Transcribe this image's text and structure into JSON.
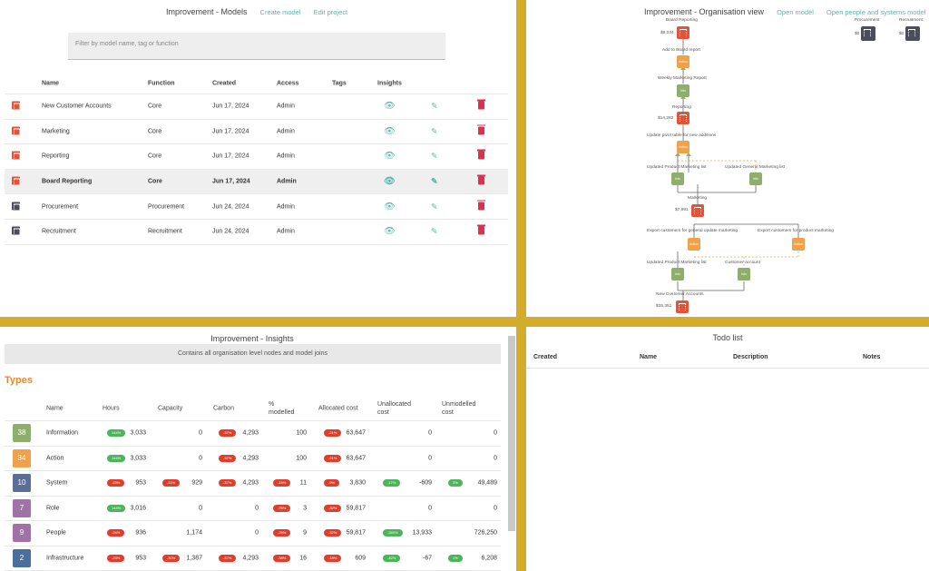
{
  "models": {
    "title": "Improvement - Models",
    "create_label": "Create model",
    "edit_label": "Edit project",
    "filter_placeholder": "Filter by model name, tag or function",
    "columns": [
      "Name",
      "Function",
      "Created",
      "Access",
      "Tags",
      "Insights"
    ],
    "rows": [
      {
        "name": "New Customer Accounts",
        "function": "Core",
        "created": "Jun 17, 2024",
        "access": "Admin",
        "icon": "org-chart-icon",
        "icon_color": "#e0553a"
      },
      {
        "name": "Marketing",
        "function": "Core",
        "created": "Jun 17, 2024",
        "access": "Admin",
        "icon": "org-chart-icon",
        "icon_color": "#e0553a"
      },
      {
        "name": "Reporting",
        "function": "Core",
        "created": "Jun 17, 2024",
        "access": "Admin",
        "icon": "org-chart-icon",
        "icon_color": "#e0553a"
      },
      {
        "name": "Board Reporting",
        "function": "Core",
        "created": "Jun 17, 2024",
        "access": "Admin",
        "icon": "org-chart-icon",
        "icon_color": "#e0553a"
      },
      {
        "name": "Procurement",
        "function": "Procurement",
        "created": "Jun 24, 2024",
        "access": "Admin",
        "icon": "org-chart-icon",
        "icon_color": "#4b4e5a"
      },
      {
        "name": "Recruitment",
        "function": "Recruitment",
        "created": "Jun 24, 2024",
        "access": "Admin",
        "icon": "org-chart-icon",
        "icon_color": "#4b4e5a"
      }
    ]
  },
  "org": {
    "title": "Improvement - Organisation view",
    "open_model": "Open model",
    "open_people": "Open people and systems model",
    "side_nodes": [
      {
        "label": "Procurement",
        "value": "$0"
      },
      {
        "label": "Recruitment",
        "value": "$0"
      }
    ],
    "nodes": {
      "board_reporting": {
        "label": "Board Reporting",
        "value": "$6,034"
      },
      "add_to_board": {
        "label": "Add to Board report",
        "badge": "Action"
      },
      "weekly_report": {
        "label": "Weekly Marketing Report",
        "badge": "Info"
      },
      "reporting": {
        "label": "Reporting",
        "value": "$14,282"
      },
      "update_tables": {
        "label": "Update pivot table for new additions",
        "badge": "Action"
      },
      "updated_pml": {
        "label": "Updated Product Marketing list",
        "badge": "Info"
      },
      "updated_gml": {
        "label": "Updated General Marketing list",
        "badge": "Info"
      },
      "marketing": {
        "label": "Marketing",
        "value": "$7,991"
      },
      "export_general": {
        "label": "Export customers for general update marketing",
        "badge": "Action"
      },
      "export_product": {
        "label": "Export customers for product marketing",
        "badge": "Action"
      },
      "updated_pml2": {
        "label": "Updated Product Marketing list",
        "badge": "Info"
      },
      "customer_account": {
        "label": "Customer account",
        "badge": "Info"
      },
      "new_customer": {
        "label": "New Customer Accounts",
        "value": "$35,351"
      }
    }
  },
  "insights": {
    "title": "Improvement - Insights",
    "banner": "Contains all organisation level nodes and model joins",
    "types_heading": "Types",
    "columns": [
      "Name",
      "Hours",
      "Capacity",
      "Carbon",
      "% modelled",
      "Allocated cost",
      "Unallocated cost",
      "Unmodelled cost"
    ],
    "rows": [
      {
        "count": "38",
        "color": "#8fae6c",
        "name": "Information",
        "hours": {
          "pill": "144%",
          "tone": "g",
          "val": "3,033"
        },
        "capacity": {
          "val": "0"
        },
        "carbon": {
          "pill": "-37%",
          "tone": "r",
          "val": "4,293"
        },
        "modelled": {
          "val": "100"
        },
        "allocated": {
          "pill": "-21%",
          "tone": "r",
          "val": "63,647"
        },
        "unallocated": {
          "val": "0"
        },
        "unmodelled": {
          "val": "0"
        }
      },
      {
        "count": "34",
        "color": "#f0a24a",
        "name": "Action",
        "hours": {
          "pill": "144%",
          "tone": "g",
          "val": "3,033"
        },
        "capacity": {
          "val": "0"
        },
        "carbon": {
          "pill": "-37%",
          "tone": "r",
          "val": "4,293"
        },
        "modelled": {
          "val": "100"
        },
        "allocated": {
          "pill": "-21%",
          "tone": "r",
          "val": "63,647"
        },
        "unallocated": {
          "val": "0"
        },
        "unmodelled": {
          "val": "0"
        }
      },
      {
        "count": "10",
        "color": "#5b6f96",
        "name": "System",
        "hours": {
          "pill": "-23%",
          "tone": "r",
          "val": "953"
        },
        "capacity": {
          "pill": "-11%",
          "tone": "r",
          "val": "929"
        },
        "carbon": {
          "pill": "-37%",
          "tone": "r",
          "val": "4,293"
        },
        "modelled": {
          "pill": "-15%",
          "tone": "r",
          "val": "11"
        },
        "allocated": {
          "pill": "-9%",
          "tone": "r",
          "val": "3,830"
        },
        "unallocated": {
          "pill": "-17%",
          "tone": "g",
          "val": "-609"
        },
        "unmodelled": {
          "pill": "3%",
          "tone": "g",
          "val": "49,489"
        }
      },
      {
        "count": "7",
        "color": "#a172a8",
        "name": "Role",
        "hours": {
          "pill": "144%",
          "tone": "g",
          "val": "3,016"
        },
        "capacity": {
          "val": "0"
        },
        "carbon": {
          "val": "0"
        },
        "modelled": {
          "pill": "-75%",
          "tone": "r",
          "val": "3"
        },
        "allocated": {
          "pill": "-32%",
          "tone": "r",
          "val": "59,817"
        },
        "unallocated": {
          "val": "0"
        },
        "unmodelled": {
          "val": "0"
        }
      },
      {
        "count": "9",
        "color": "#a172a8",
        "name": "People",
        "hours": {
          "pill": "-24%",
          "tone": "r",
          "val": "936"
        },
        "capacity": {
          "val": "1,174"
        },
        "carbon": {
          "val": "0"
        },
        "modelled": {
          "pill": "-25%",
          "tone": "r",
          "val": "9"
        },
        "allocated": {
          "pill": "-32%",
          "tone": "r",
          "val": "59,817"
        },
        "unallocated": {
          "pill": "-340%",
          "tone": "g",
          "val": "13,933"
        },
        "unmodelled": {
          "val": "726,250"
        }
      },
      {
        "count": "2",
        "color": "#4a6f9e",
        "name": "Infrastructure",
        "hours": {
          "pill": "-23%",
          "tone": "r",
          "val": "953"
        },
        "capacity": {
          "pill": "-30%",
          "tone": "r",
          "val": "1,387"
        },
        "carbon": {
          "pill": "-37%",
          "tone": "r",
          "val": "4,293"
        },
        "modelled": {
          "pill": "-38%",
          "tone": "r",
          "val": "16"
        },
        "allocated": {
          "pill": "-18%",
          "tone": "r",
          "val": "609"
        },
        "unallocated": {
          "pill": "-42%",
          "tone": "g",
          "val": "-67"
        },
        "unmodelled": {
          "pill": "1%",
          "tone": "g",
          "val": "6,208"
        }
      }
    ]
  },
  "todo": {
    "title": "Todo list",
    "columns": [
      "Created",
      "Name",
      "Description",
      "Notes"
    ]
  }
}
